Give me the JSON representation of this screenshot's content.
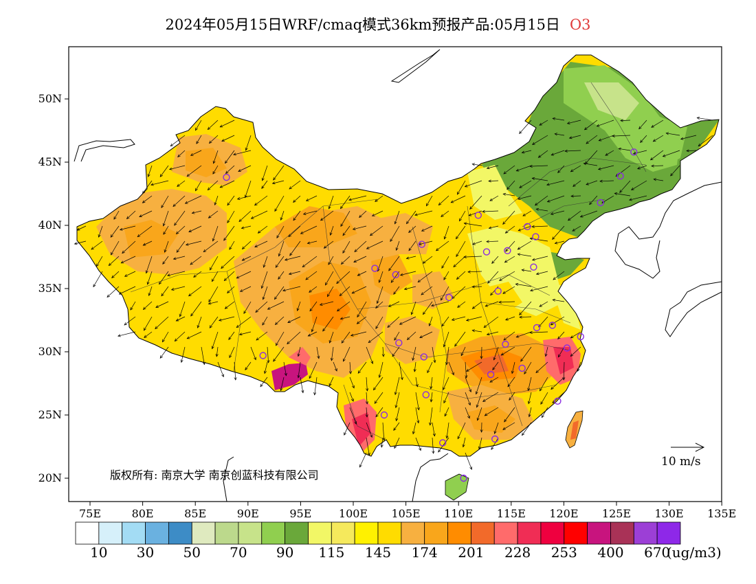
{
  "title": {
    "main": "2024年05月15日WRF/cmaq模式36km预报产品:05月15日",
    "species": "O3"
  },
  "map": {
    "lat_ticks": [
      "50N",
      "45N",
      "40N",
      "35N",
      "30N",
      "25N",
      "20N"
    ],
    "lon_ticks": [
      "75E",
      "80E",
      "85E",
      "90E",
      "95E",
      "100E",
      "105E",
      "110E",
      "115E",
      "120E",
      "125E",
      "130E",
      "135E"
    ],
    "copyright": "版权所有: 南京大学 南京创蓝科技有限公司",
    "wind_scale_label": "10 m/s"
  },
  "colorbar": {
    "colors": [
      "#ffffff",
      "#d6f0fa",
      "#a3dcf4",
      "#6ab1e0",
      "#3d8cc6",
      "#dfeabf",
      "#bcd98c",
      "#c7e38a",
      "#90cf4f",
      "#6aa83a",
      "#f2f766",
      "#f5e95c",
      "#fff100",
      "#ffdc00",
      "#f7b040",
      "#f9a61b",
      "#ff8c00",
      "#f26a2a",
      "#ff6b6b",
      "#f02d55",
      "#ef003f",
      "#ff0000",
      "#c8147e",
      "#a93257",
      "#9c3fd6",
      "#8e28e8"
    ],
    "labels": [
      "10",
      "30",
      "50",
      "70",
      "90",
      "115",
      "145",
      "174",
      "201",
      "228",
      "253",
      "400",
      "670"
    ],
    "unit": "(ug/m3)"
  },
  "stations": [
    {
      "lon": 87.6,
      "lat": 43.8
    },
    {
      "lon": 91.1,
      "lat": 29.7
    },
    {
      "lon": 101.8,
      "lat": 36.6
    },
    {
      "lon": 103.8,
      "lat": 36.1
    },
    {
      "lon": 106.3,
      "lat": 38.5
    },
    {
      "lon": 111.7,
      "lat": 40.8
    },
    {
      "lon": 112.5,
      "lat": 37.9
    },
    {
      "lon": 114.5,
      "lat": 38.0
    },
    {
      "lon": 116.4,
      "lat": 39.9
    },
    {
      "lon": 117.2,
      "lat": 39.1
    },
    {
      "lon": 117.0,
      "lat": 36.7
    },
    {
      "lon": 113.6,
      "lat": 34.8
    },
    {
      "lon": 108.9,
      "lat": 34.3
    },
    {
      "lon": 104.1,
      "lat": 30.7
    },
    {
      "lon": 106.5,
      "lat": 29.6
    },
    {
      "lon": 114.3,
      "lat": 30.6
    },
    {
      "lon": 117.3,
      "lat": 31.9
    },
    {
      "lon": 118.8,
      "lat": 32.1
    },
    {
      "lon": 121.5,
      "lat": 31.2
    },
    {
      "lon": 120.2,
      "lat": 30.3
    },
    {
      "lon": 112.9,
      "lat": 28.2
    },
    {
      "lon": 115.9,
      "lat": 28.7
    },
    {
      "lon": 119.3,
      "lat": 26.1
    },
    {
      "lon": 106.7,
      "lat": 26.6
    },
    {
      "lon": 102.7,
      "lat": 25.0
    },
    {
      "lon": 108.3,
      "lat": 22.8
    },
    {
      "lon": 113.3,
      "lat": 23.1
    },
    {
      "lon": 110.3,
      "lat": 20.0
    },
    {
      "lon": 123.4,
      "lat": 41.8
    },
    {
      "lon": 125.3,
      "lat": 43.9
    },
    {
      "lon": 126.6,
      "lat": 45.8
    }
  ]
}
